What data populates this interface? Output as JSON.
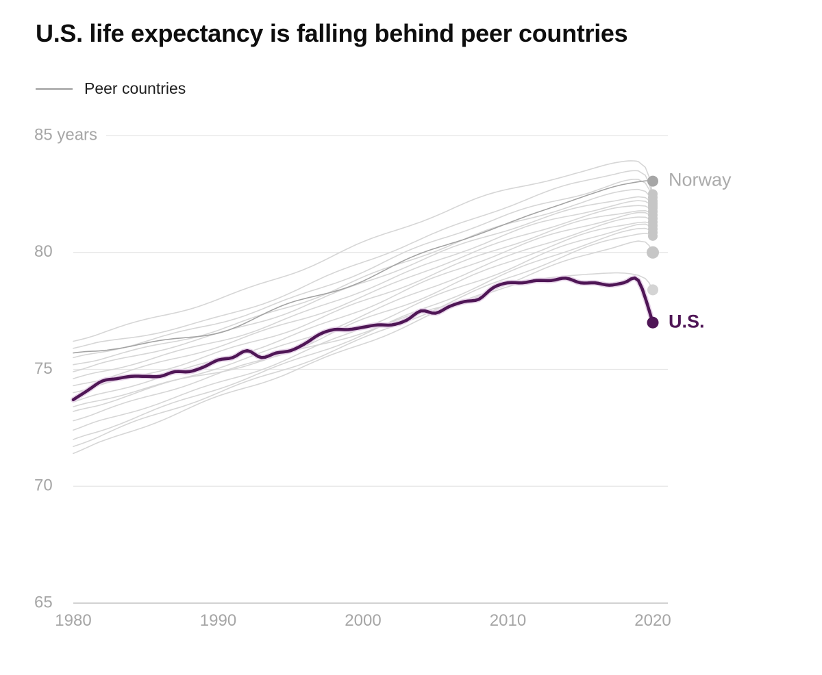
{
  "title": "U.S. life expectancy is falling behind peer countries",
  "legend": {
    "label": "Peer countries"
  },
  "colors": {
    "background": "#ffffff",
    "title_text": "#0e0e0e",
    "legend_text": "#1e1e1e",
    "legend_swatch": "#9c9c9c",
    "us_purple": "#4f1656",
    "us_halo": "#e7d5e9",
    "peer_gray": "#d6d6d6",
    "norway_gray": "#a3a3a3",
    "peer_dot": "#c6c6c6",
    "norway_label": "#ababab",
    "grid": "#e5e5e5",
    "axis_line": "#d2d2d2",
    "tick_text": "#a6a6a6"
  },
  "chart_data": {
    "type": "line",
    "title": "U.S. life expectancy is falling behind peer countries",
    "xlabel": "",
    "ylabel": "years",
    "xlim": [
      1980,
      2020
    ],
    "ylim": [
      65,
      85
    ],
    "grid": "horizontal",
    "legend_position": "top-left",
    "x_axis": {
      "ticks": [
        1980,
        1990,
        2000,
        2010,
        2020
      ]
    },
    "y_axis": {
      "ticks": [
        65,
        70,
        75,
        80,
        85
      ],
      "tick_labels": [
        "65",
        "70",
        "75",
        "80",
        "85 years"
      ]
    },
    "series": [
      {
        "name": "U.S.",
        "role": "highlight",
        "label": "U.S.",
        "color": "#4f1656",
        "label_color": "#4f1656",
        "dot_color": "#4f1656",
        "dot_radius": 8.5,
        "years": [
          1980,
          1981,
          1982,
          1983,
          1984,
          1985,
          1986,
          1987,
          1988,
          1989,
          1990,
          1991,
          1992,
          1993,
          1994,
          1995,
          1996,
          1997,
          1998,
          1999,
          2000,
          2001,
          2002,
          2003,
          2004,
          2005,
          2006,
          2007,
          2008,
          2009,
          2010,
          2011,
          2012,
          2013,
          2014,
          2015,
          2016,
          2017,
          2018,
          2019,
          2020
        ],
        "values": [
          73.7,
          74.1,
          74.5,
          74.6,
          74.7,
          74.7,
          74.7,
          74.9,
          74.9,
          75.1,
          75.4,
          75.5,
          75.8,
          75.5,
          75.7,
          75.8,
          76.1,
          76.5,
          76.7,
          76.7,
          76.8,
          76.9,
          76.9,
          77.1,
          77.5,
          77.4,
          77.7,
          77.9,
          78.0,
          78.5,
          78.7,
          78.7,
          78.8,
          78.8,
          78.9,
          78.7,
          78.7,
          78.6,
          78.7,
          78.8,
          77.0
        ]
      },
      {
        "name": "Norway",
        "role": "emphasized-peer",
        "label": "Norway",
        "color": "#a3a3a3",
        "label_color": "#ababab",
        "dot_color": "#a6a6a6",
        "dot_radius": 8,
        "years": [
          1980,
          1985,
          1990,
          1995,
          2000,
          2005,
          2010,
          2015,
          2019,
          2020
        ],
        "values": [
          75.7,
          76.1,
          76.6,
          77.8,
          78.8,
          80.2,
          81.2,
          82.4,
          83.0,
          83.05
        ]
      },
      {
        "name": "peer-01",
        "role": "peer",
        "color": "#d6d6d6",
        "dot_color": "#c6c6c6",
        "dot_radius": 7,
        "years": [
          1980,
          1985,
          1990,
          1995,
          2000,
          2005,
          2010,
          2015,
          2019,
          2020
        ],
        "values": [
          76.2,
          77.1,
          78.0,
          79.1,
          80.4,
          81.6,
          82.7,
          83.4,
          83.9,
          82.5
        ]
      },
      {
        "name": "peer-02",
        "role": "peer",
        "color": "#d6d6d6",
        "dot_color": "#c6c6c6",
        "dot_radius": 7,
        "years": [
          1980,
          1985,
          1990,
          1995,
          2000,
          2005,
          2010,
          2015,
          2019,
          2020
        ],
        "values": [
          75.9,
          76.5,
          77.2,
          78.3,
          79.6,
          80.8,
          82.0,
          83.0,
          83.5,
          82.35
        ]
      },
      {
        "name": "peer-03",
        "role": "peer",
        "color": "#d6d6d6",
        "dot_color": "#c6c6c6",
        "dot_radius": 7,
        "years": [
          1980,
          1985,
          1990,
          1995,
          2000,
          2005,
          2010,
          2015,
          2019,
          2020
        ],
        "values": [
          75.5,
          76.2,
          77.0,
          78.0,
          79.2,
          80.5,
          81.6,
          82.5,
          83.1,
          82.2
        ]
      },
      {
        "name": "peer-04",
        "role": "peer",
        "color": "#d6d6d6",
        "dot_color": "#c6c6c6",
        "dot_radius": 7,
        "years": [
          1980,
          1985,
          1990,
          1995,
          2000,
          2005,
          2010,
          2015,
          2019,
          2020
        ],
        "values": [
          75.2,
          75.9,
          76.7,
          77.7,
          78.9,
          80.1,
          81.2,
          82.1,
          82.7,
          82.1
        ]
      },
      {
        "name": "peer-05",
        "role": "peer",
        "color": "#d6d6d6",
        "dot_color": "#c6c6c6",
        "dot_radius": 7,
        "years": [
          1980,
          1985,
          1990,
          1995,
          2000,
          2005,
          2010,
          2015,
          2019,
          2020
        ],
        "values": [
          74.9,
          75.7,
          76.5,
          77.5,
          78.7,
          79.9,
          81.0,
          81.9,
          82.4,
          82.0
        ]
      },
      {
        "name": "peer-06",
        "role": "peer",
        "color": "#d6d6d6",
        "dot_color": "#c6c6c6",
        "dot_radius": 7,
        "years": [
          1980,
          1985,
          1990,
          1995,
          2000,
          2005,
          2010,
          2015,
          2019,
          2020
        ],
        "values": [
          74.6,
          75.4,
          76.2,
          77.2,
          78.4,
          79.6,
          80.8,
          81.7,
          82.2,
          81.9
        ]
      },
      {
        "name": "peer-07",
        "role": "peer",
        "color": "#d6d6d6",
        "dot_color": "#c6c6c6",
        "dot_radius": 7,
        "years": [
          1980,
          1985,
          1990,
          1995,
          2000,
          2005,
          2010,
          2015,
          2019,
          2020
        ],
        "values": [
          74.3,
          75.1,
          76.0,
          77.0,
          78.1,
          79.4,
          80.5,
          81.5,
          82.0,
          81.75
        ]
      },
      {
        "name": "peer-08",
        "role": "peer",
        "color": "#d6d6d6",
        "dot_color": "#c6c6c6",
        "dot_radius": 7,
        "years": [
          1980,
          1985,
          1990,
          1995,
          2000,
          2005,
          2010,
          2015,
          2019,
          2020
        ],
        "values": [
          74.0,
          74.8,
          75.7,
          76.7,
          77.9,
          79.1,
          80.3,
          81.3,
          81.8,
          81.6
        ]
      },
      {
        "name": "peer-09",
        "role": "peer",
        "color": "#d6d6d6",
        "dot_color": "#c6c6c6",
        "dot_radius": 7,
        "years": [
          1980,
          1985,
          1990,
          1995,
          2000,
          2005,
          2010,
          2015,
          2019,
          2020
        ],
        "values": [
          73.6,
          74.5,
          75.4,
          76.4,
          77.6,
          78.9,
          80.1,
          81.1,
          81.7,
          81.45
        ]
      },
      {
        "name": "peer-10",
        "role": "peer",
        "color": "#d6d6d6",
        "dot_color": "#c6c6c6",
        "dot_radius": 7,
        "years": [
          1980,
          1985,
          1990,
          1995,
          2000,
          2005,
          2010,
          2015,
          2019,
          2020
        ],
        "values": [
          73.2,
          74.1,
          75.1,
          76.1,
          77.3,
          78.6,
          79.8,
          80.9,
          81.5,
          81.3
        ]
      },
      {
        "name": "peer-11",
        "role": "peer",
        "color": "#d6d6d6",
        "dot_color": "#c6c6c6",
        "dot_radius": 7,
        "years": [
          1980,
          1985,
          1990,
          1995,
          2000,
          2005,
          2010,
          2015,
          2019,
          2020
        ],
        "values": [
          72.8,
          73.8,
          74.8,
          75.8,
          77.1,
          78.3,
          79.6,
          80.7,
          81.3,
          81.15
        ]
      },
      {
        "name": "peer-12",
        "role": "peer",
        "color": "#d6d6d6",
        "dot_color": "#c6c6c6",
        "dot_radius": 7,
        "years": [
          1980,
          1985,
          1990,
          1995,
          2000,
          2005,
          2010,
          2015,
          2019,
          2020
        ],
        "values": [
          72.4,
          73.4,
          74.4,
          75.5,
          76.8,
          78.1,
          79.3,
          80.5,
          81.2,
          81.0
        ]
      },
      {
        "name": "peer-13",
        "role": "peer",
        "color": "#d6d6d6",
        "dot_color": "#c6c6c6",
        "dot_radius": 7,
        "years": [
          1980,
          1985,
          1990,
          1995,
          2000,
          2005,
          2010,
          2015,
          2019,
          2020
        ],
        "values": [
          72.0,
          73.1,
          74.2,
          75.3,
          76.5,
          77.8,
          79.1,
          80.3,
          81.0,
          80.85
        ]
      },
      {
        "name": "peer-14",
        "role": "peer",
        "color": "#d6d6d6",
        "dot_color": "#c6c6c6",
        "dot_radius": 7,
        "years": [
          1980,
          1985,
          1990,
          1995,
          2000,
          2005,
          2010,
          2015,
          2019,
          2020
        ],
        "values": [
          71.7,
          72.9,
          74.0,
          75.1,
          76.3,
          77.6,
          78.9,
          80.1,
          80.8,
          80.7
        ]
      },
      {
        "name": "peer-15",
        "role": "peer",
        "color": "#d6d6d6",
        "dot_color": "#c6c6c6",
        "dot_radius": 9,
        "years": [
          1980,
          1985,
          1990,
          1995,
          2000,
          2005,
          2010,
          2015,
          2019,
          2020
        ],
        "values": [
          71.4,
          72.6,
          73.8,
          74.9,
          76.1,
          77.4,
          78.7,
          79.8,
          80.5,
          80.0
        ]
      },
      {
        "name": "peer-16",
        "role": "peer",
        "color": "#d6d6d6",
        "dot_color": "#d4d4d4",
        "dot_radius": 8,
        "years": [
          1980,
          1985,
          1990,
          1995,
          2000,
          2005,
          2010,
          2015,
          2019,
          2020
        ],
        "values": [
          73.4,
          74.2,
          74.9,
          75.7,
          76.6,
          77.6,
          78.5,
          79.1,
          79.0,
          78.4
        ]
      }
    ]
  }
}
